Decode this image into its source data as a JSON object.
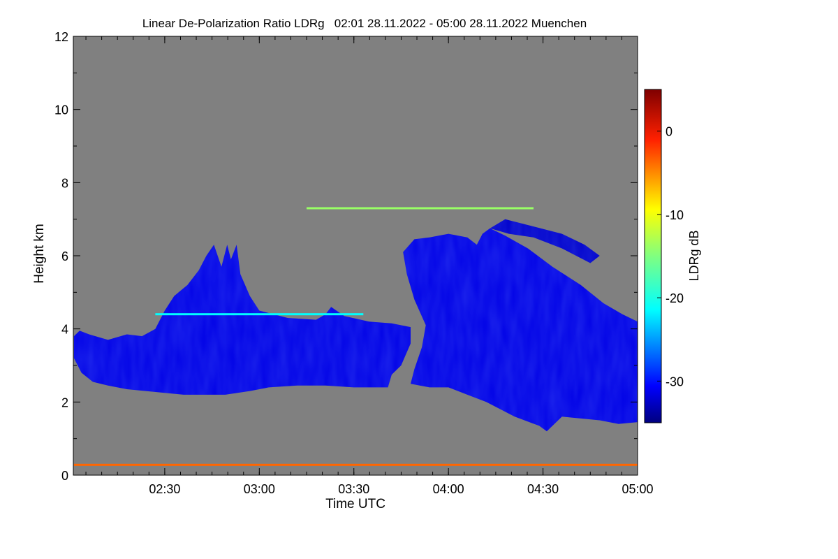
{
  "chart_data": {
    "type": "heatmap",
    "title": "Linear De-Polarization Ratio LDRg   02:01 28.11.2022 - 05:00 28.11.2022 Muenchen",
    "xlabel": "Time UTC",
    "ylabel": "Height km",
    "x_ticks": [
      "02:30",
      "03:00",
      "03:30",
      "04:00",
      "04:30",
      "05:00"
    ],
    "x_tick_hours": [
      2.5,
      3.0,
      3.5,
      4.0,
      4.5,
      5.0
    ],
    "xlim_hours": [
      2.0167,
      5.0
    ],
    "y_ticks": [
      "0",
      "2",
      "4",
      "6",
      "8",
      "10",
      "12"
    ],
    "ylim": [
      0,
      12
    ],
    "colorbar": {
      "label": "LDRg dB",
      "ticks": [
        "0",
        "-10",
        "-20",
        "-30"
      ],
      "tick_values": [
        0,
        -10,
        -20,
        -30
      ],
      "range": [
        -35,
        5
      ],
      "colormap": "jet"
    },
    "background_color": "#808080",
    "features": [
      {
        "kind": "cloud",
        "ldr_db": -31,
        "polygon_time_height": [
          [
            2.02,
            3.2
          ],
          [
            2.06,
            2.8
          ],
          [
            2.12,
            2.55
          ],
          [
            2.2,
            2.45
          ],
          [
            2.3,
            2.35
          ],
          [
            2.4,
            2.3
          ],
          [
            2.5,
            2.25
          ],
          [
            2.6,
            2.2
          ],
          [
            2.7,
            2.2
          ],
          [
            2.82,
            2.2
          ],
          [
            2.95,
            2.3
          ],
          [
            3.05,
            2.4
          ],
          [
            3.2,
            2.45
          ],
          [
            3.35,
            2.45
          ],
          [
            3.5,
            2.4
          ],
          [
            3.6,
            2.4
          ],
          [
            3.68,
            2.4
          ],
          [
            3.7,
            2.75
          ],
          [
            3.75,
            3.0
          ],
          [
            3.8,
            3.6
          ],
          [
            3.8,
            4.05
          ],
          [
            3.7,
            4.15
          ],
          [
            3.58,
            4.2
          ],
          [
            3.45,
            4.35
          ],
          [
            3.38,
            4.6
          ],
          [
            3.35,
            4.4
          ],
          [
            3.3,
            4.25
          ],
          [
            3.15,
            4.3
          ],
          [
            3.0,
            4.5
          ],
          [
            2.95,
            4.9
          ],
          [
            2.9,
            5.5
          ],
          [
            2.88,
            6.3
          ],
          [
            2.85,
            5.9
          ],
          [
            2.83,
            6.3
          ],
          [
            2.8,
            5.7
          ],
          [
            2.76,
            6.3
          ],
          [
            2.72,
            6.0
          ],
          [
            2.68,
            5.6
          ],
          [
            2.62,
            5.2
          ],
          [
            2.55,
            4.9
          ],
          [
            2.5,
            4.5
          ],
          [
            2.45,
            4.0
          ],
          [
            2.38,
            3.8
          ],
          [
            2.3,
            3.85
          ],
          [
            2.2,
            3.7
          ],
          [
            2.1,
            3.85
          ],
          [
            2.05,
            3.95
          ],
          [
            2.02,
            3.8
          ]
        ]
      },
      {
        "kind": "cloud",
        "ldr_db": -31,
        "polygon_time_height": [
          [
            3.8,
            2.5
          ],
          [
            3.9,
            2.4
          ],
          [
            4.0,
            2.4
          ],
          [
            4.1,
            2.2
          ],
          [
            4.2,
            2.0
          ],
          [
            4.35,
            1.6
          ],
          [
            4.48,
            1.35
          ],
          [
            4.52,
            1.2
          ],
          [
            4.6,
            1.6
          ],
          [
            4.7,
            1.55
          ],
          [
            4.8,
            1.5
          ],
          [
            4.9,
            1.4
          ],
          [
            5.0,
            1.45
          ],
          [
            5.0,
            4.2
          ],
          [
            4.92,
            4.4
          ],
          [
            4.82,
            4.7
          ],
          [
            4.7,
            5.2
          ],
          [
            4.55,
            5.7
          ],
          [
            4.42,
            6.2
          ],
          [
            4.3,
            6.55
          ],
          [
            4.22,
            6.75
          ],
          [
            4.18,
            6.6
          ],
          [
            4.15,
            6.3
          ],
          [
            4.1,
            6.5
          ],
          [
            4.0,
            6.6
          ],
          [
            3.9,
            6.5
          ],
          [
            3.82,
            6.45
          ],
          [
            3.76,
            6.1
          ],
          [
            3.78,
            5.5
          ],
          [
            3.82,
            4.8
          ],
          [
            3.88,
            4.1
          ],
          [
            3.86,
            3.5
          ],
          [
            3.82,
            2.9
          ]
        ]
      },
      {
        "kind": "cloud-fringe",
        "ldr_db": -32,
        "polygon_time_height": [
          [
            4.22,
            6.75
          ],
          [
            4.3,
            7.0
          ],
          [
            4.45,
            6.8
          ],
          [
            4.6,
            6.6
          ],
          [
            4.72,
            6.3
          ],
          [
            4.8,
            6.0
          ],
          [
            4.75,
            5.8
          ],
          [
            4.6,
            6.2
          ],
          [
            4.45,
            6.5
          ],
          [
            4.32,
            6.6
          ]
        ]
      },
      {
        "kind": "layer",
        "ldr_db": -14,
        "time_range": [
          3.25,
          4.45
        ],
        "height_km": 7.3
      },
      {
        "kind": "layer",
        "ldr_db": -20,
        "time_range": [
          2.45,
          3.55
        ],
        "height_km": 4.4
      },
      {
        "kind": "layer",
        "ldr_db": -4,
        "time_range": [
          2.02,
          5.0
        ],
        "height_km": 0.28
      }
    ]
  }
}
